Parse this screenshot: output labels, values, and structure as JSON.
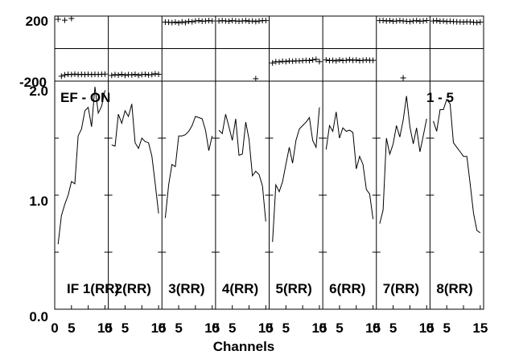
{
  "chart_data": {
    "type": "line",
    "xlabel": "Channels",
    "annotations": {
      "left": "EF - ON",
      "right": "1 - 5"
    },
    "phase_axis": {
      "ticks": [
        "200",
        "-200"
      ],
      "ylim": [
        -200,
        200
      ]
    },
    "amp_axis": {
      "ticks": [
        "2.0",
        "1.0",
        "0.0"
      ],
      "ylim": [
        0,
        2
      ]
    },
    "x_ticks": [
      "0",
      "5",
      "15"
    ],
    "xlim": [
      0,
      16
    ],
    "panels": [
      {
        "label": "IF 1(RR)",
        "x": [
          1,
          2,
          3,
          4,
          5,
          6,
          7,
          8,
          9,
          10,
          11,
          12,
          13,
          14,
          15
        ],
        "amplitude": [
          0.57,
          0.82,
          0.92,
          1.0,
          1.12,
          1.1,
          1.52,
          1.58,
          1.74,
          1.77,
          1.6,
          1.95,
          1.72,
          1.78,
          1.92
        ],
        "phase_x": [
          1,
          3,
          5
        ],
        "phase": [
          180,
          175,
          185
        ],
        "phase2_x": [
          2,
          3,
          4,
          5,
          6,
          7,
          8,
          9,
          10,
          11,
          12,
          13,
          14,
          15
        ],
        "phase2": [
          -170,
          -162,
          -158,
          -160,
          -157,
          -160,
          -158,
          -160,
          -158,
          -160,
          -158,
          -159,
          -158,
          -157
        ]
      },
      {
        "label": "2(RR)",
        "x": [
          1,
          2,
          3,
          4,
          5,
          6,
          7,
          8,
          9,
          10,
          11,
          12,
          13,
          14,
          15
        ],
        "amplitude": [
          1.44,
          1.43,
          1.71,
          1.63,
          1.74,
          1.69,
          1.8,
          1.46,
          1.41,
          1.5,
          1.47,
          1.46,
          1.34,
          1.1,
          0.84
        ],
        "phase2_x": [
          1,
          2,
          3,
          4,
          5,
          6,
          7,
          8,
          9,
          10,
          11,
          12,
          13,
          14,
          15
        ],
        "phase2": [
          -165,
          -160,
          -163,
          -158,
          -165,
          -160,
          -162,
          -158,
          -165,
          -160,
          -158,
          -162,
          -160,
          -155,
          -158
        ]
      },
      {
        "label": "3(RR)",
        "x": [
          1,
          2,
          3,
          4,
          5,
          6,
          7,
          8,
          9,
          10,
          11,
          12,
          13,
          14,
          15
        ],
        "amplitude": [
          0.8,
          1.09,
          1.27,
          1.25,
          1.52,
          1.52,
          1.53,
          1.56,
          1.61,
          1.69,
          1.68,
          1.67,
          1.57,
          1.39,
          1.52
        ],
        "phase_x": [
          1,
          2,
          3,
          4,
          5,
          6,
          7,
          8,
          9,
          10,
          11,
          12,
          13,
          14,
          15
        ],
        "phase": [
          163,
          162,
          160,
          163,
          158,
          165,
          160,
          168,
          165,
          170,
          172,
          168,
          170,
          172,
          170
        ]
      },
      {
        "label": "4(RR)",
        "x": [
          1,
          2,
          3,
          4,
          5,
          6,
          7,
          8,
          9,
          10,
          11,
          12,
          13,
          14,
          15
        ],
        "amplitude": [
          1.57,
          1.54,
          1.71,
          1.6,
          1.48,
          1.67,
          1.35,
          1.36,
          1.64,
          1.49,
          1.17,
          1.21,
          1.18,
          1.08,
          0.77
        ],
        "phase_x": [
          1,
          2,
          3,
          4,
          5,
          6,
          7,
          8,
          9,
          10,
          11,
          12,
          13,
          14,
          15
        ],
        "phase": [
          170,
          172,
          170,
          168,
          172,
          170,
          168,
          170,
          172,
          168,
          170,
          166,
          170,
          172,
          172
        ],
        "phase2_x": [
          12
        ],
        "phase2": [
          -185
        ]
      },
      {
        "label": "5(RR)",
        "x": [
          1,
          2,
          3,
          4,
          5,
          6,
          7,
          8,
          9,
          10,
          11,
          12,
          13,
          14,
          15
        ],
        "amplitude": [
          0.59,
          1.09,
          1.03,
          1.12,
          1.27,
          1.42,
          1.28,
          1.48,
          1.58,
          1.61,
          1.64,
          1.68,
          1.48,
          1.42,
          1.77
        ],
        "phase2_x": [
          1,
          2,
          3,
          4,
          5,
          6,
          7,
          8,
          9,
          10,
          11,
          12,
          13,
          14,
          15
        ],
        "phase2": [
          -88,
          -80,
          -82,
          -78,
          -80,
          -76,
          -78,
          -75,
          -76,
          -74,
          -72,
          -74,
          -70,
          -66,
          -80
        ]
      },
      {
        "label": "6(RR)",
        "x": [
          1,
          2,
          3,
          4,
          5,
          6,
          7,
          8,
          9,
          10,
          11,
          12,
          13,
          14,
          15
        ],
        "amplitude": [
          1.4,
          1.61,
          1.56,
          1.73,
          1.5,
          1.59,
          1.56,
          1.57,
          1.55,
          1.23,
          1.34,
          1.27,
          1.05,
          1.01,
          0.79
        ],
        "phase2_x": [
          1,
          2,
          3,
          4,
          5,
          6,
          7,
          8,
          9,
          10,
          11,
          12,
          13,
          14,
          15
        ],
        "phase2": [
          -70,
          -74,
          -72,
          -76,
          -70,
          -74,
          -72,
          -68,
          -72,
          -70,
          -74,
          -72,
          -70,
          -72,
          -72
        ]
      },
      {
        "label": "7(RR)",
        "x": [
          1,
          2,
          3,
          4,
          5,
          6,
          7,
          8,
          9,
          10,
          11,
          12,
          13,
          14,
          15
        ],
        "amplitude": [
          0.75,
          0.87,
          1.5,
          1.36,
          1.45,
          1.61,
          1.51,
          1.66,
          1.87,
          1.6,
          1.45,
          1.59,
          1.38,
          1.52,
          1.67
        ],
        "phase_x": [
          1,
          2,
          3,
          4,
          5,
          6,
          7,
          8,
          9,
          10,
          11,
          12,
          13,
          14,
          15
        ],
        "phase": [
          172,
          173,
          170,
          172,
          168,
          170,
          172,
          170,
          168,
          166,
          170,
          172,
          168,
          170,
          173
        ],
        "phase2_x": [
          8
        ],
        "phase2": [
          -180
        ]
      },
      {
        "label": "8(RR)",
        "x": [
          1,
          2,
          3,
          4,
          5,
          6,
          7,
          8,
          9,
          10,
          11,
          12,
          13,
          14,
          15
        ],
        "amplitude": [
          1.65,
          1.56,
          1.75,
          1.75,
          1.84,
          1.8,
          1.46,
          1.42,
          1.38,
          1.34,
          1.34,
          1.1,
          0.84,
          0.69,
          0.67
        ],
        "phase_x": [
          1,
          2,
          3,
          4,
          5,
          6,
          7,
          8,
          9,
          10,
          11,
          12,
          13,
          14,
          15
        ],
        "phase": [
          170,
          172,
          168,
          170,
          166,
          168,
          166,
          165,
          164,
          163,
          165,
          164,
          162,
          160,
          163
        ]
      }
    ]
  }
}
